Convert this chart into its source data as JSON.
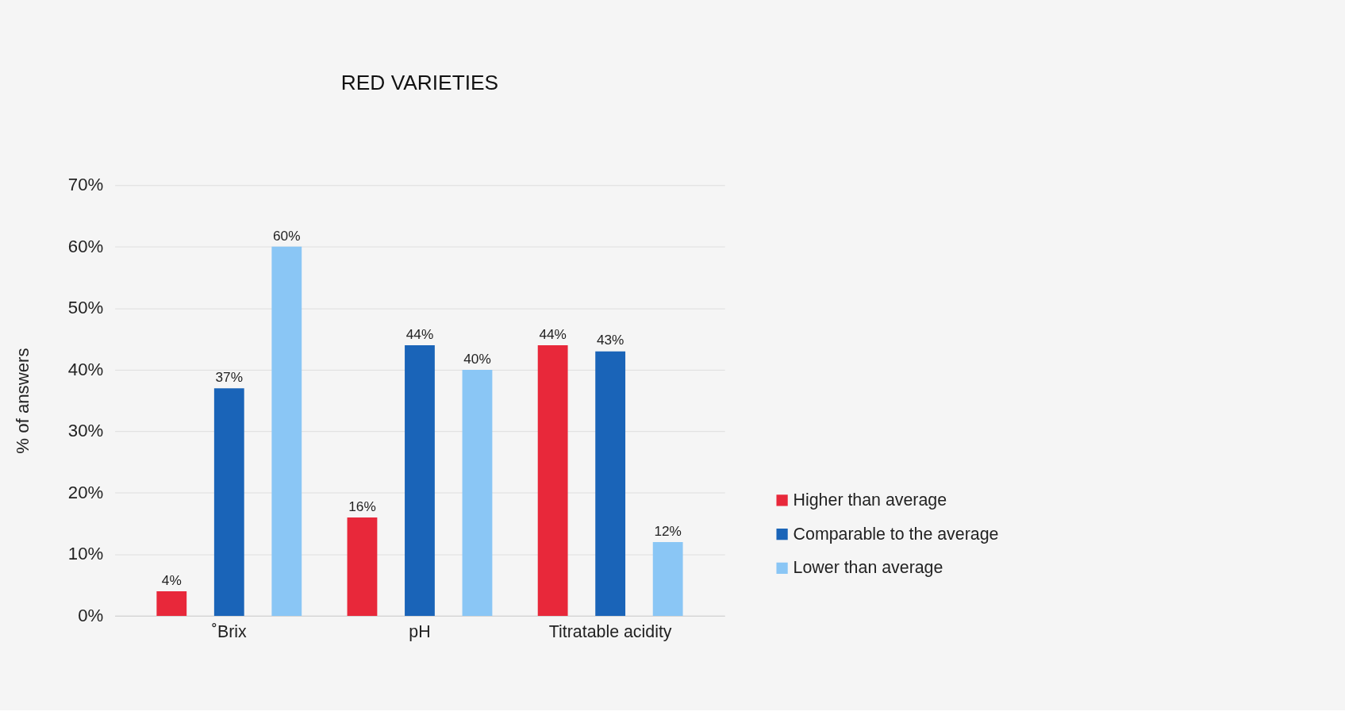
{
  "chart_data": {
    "type": "bar",
    "title": "RED VARIETIES",
    "ylabel": "% of answers",
    "categories": [
      "˚Brix",
      "pH",
      "Titratable acidity"
    ],
    "series": [
      {
        "name": "Higher than average",
        "color": "#e8283a",
        "values": [
          4,
          16,
          44
        ],
        "value_labels": [
          "4%",
          "16%",
          "44%"
        ]
      },
      {
        "name": "Comparable to the average",
        "color": "#1a64b8",
        "values": [
          37,
          44,
          43
        ],
        "value_labels": [
          "37%",
          "44%",
          "43%"
        ]
      },
      {
        "name": "Lower than average",
        "color": "#8ac6f5",
        "values": [
          60,
          40,
          12
        ],
        "value_labels": [
          "60%",
          "40%",
          "12%"
        ]
      }
    ],
    "ylim": [
      0,
      70
    ],
    "yticks": [
      {
        "value": 0,
        "label": "0%"
      },
      {
        "value": 10,
        "label": "10%"
      },
      {
        "value": 20,
        "label": "20%"
      },
      {
        "value": 30,
        "label": "30%"
      },
      {
        "value": 40,
        "label": "40%"
      },
      {
        "value": 50,
        "label": "50%"
      },
      {
        "value": 60,
        "label": "60%"
      },
      {
        "value": 70,
        "label": "70%"
      }
    ],
    "grid": "y",
    "legend": "bottom right"
  }
}
